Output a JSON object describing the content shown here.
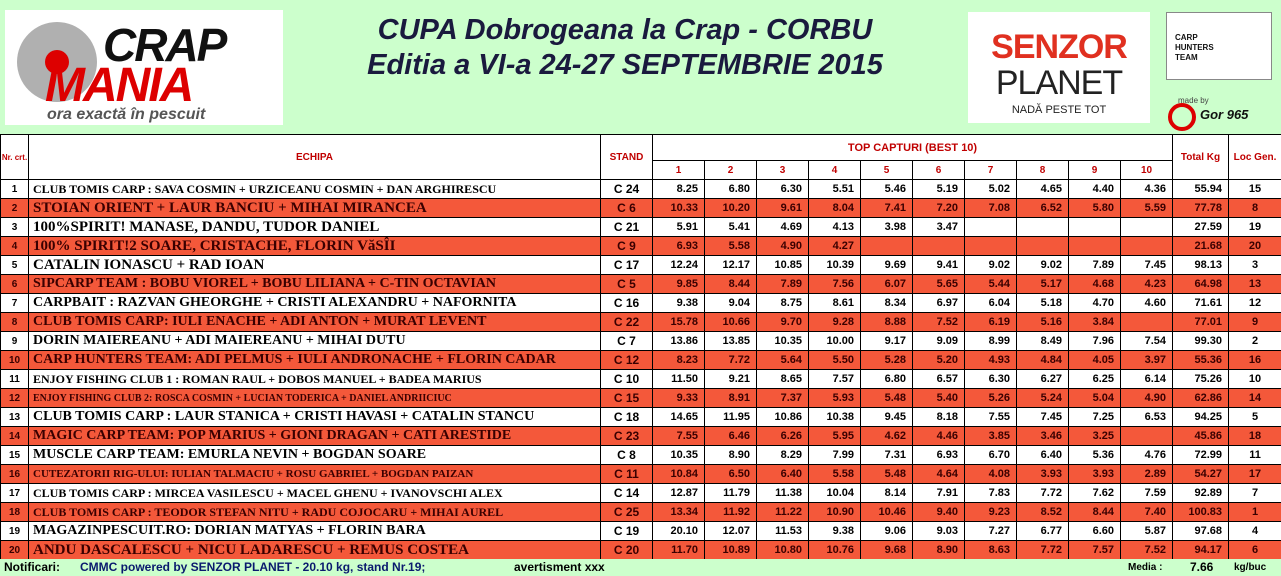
{
  "header": {
    "title_line1": "CUPA Dobrogeana la Crap - CORBU",
    "title_line2": "Editia a VI-a 24-27 SEPTEMBRIE 2015",
    "logo_left": {
      "word1": "CRAP",
      "word2": "MANIA",
      "tagline": "ora exactă în pescuit"
    },
    "logo_senzor": {
      "word1": "SENZOR",
      "word2": "PLANET",
      "tagline": "NADĂ PESTE TOT"
    },
    "logo_carp_hunters": "CARP HUNTERS TEAM",
    "made_by": "made by",
    "author": "Gor 965"
  },
  "table": {
    "columns": {
      "nr": "Nr. crt.",
      "team": "ECHIPA",
      "stand": "STAND",
      "top": "TOP CAPTURI (BEST 10)",
      "catch_numbers": [
        "1",
        "2",
        "3",
        "4",
        "5",
        "6",
        "7",
        "8",
        "9",
        "10"
      ],
      "total": "Total Kg",
      "rank": "Loc Gen."
    },
    "rows": [
      {
        "nr": "1",
        "team": "CLUB TOMIS CARP : SAVA COSMIN + URZICEANU COSMIN + DAN ARGHIRESCU",
        "stand": "C 24",
        "captures": [
          "8.25",
          "6.80",
          "6.30",
          "5.51",
          "5.46",
          "5.19",
          "5.02",
          "4.65",
          "4.40",
          "4.36"
        ],
        "total": "55.94",
        "rank": "15"
      },
      {
        "nr": "2",
        "team": "STOIAN ORIENT + LAUR BANCIU + MIHAI MIRANCEA",
        "stand": "C 6",
        "captures": [
          "10.33",
          "10.20",
          "9.61",
          "8.04",
          "7.41",
          "7.20",
          "7.08",
          "6.52",
          "5.80",
          "5.59"
        ],
        "total": "77.78",
        "rank": "8"
      },
      {
        "nr": "3",
        "team": "100%SPIRIT! MANASE, DANDU, TUDOR DANIEL",
        "stand": "C 21",
        "captures": [
          "5.91",
          "5.41",
          "4.69",
          "4.13",
          "3.98",
          "3.47"
        ],
        "total": "27.59",
        "rank": "19"
      },
      {
        "nr": "4",
        "team": "100% SPIRIT!2 SOARE, CRISTACHE, FLORIN VăSÎI",
        "stand": "C 9",
        "captures": [
          "6.93",
          "5.58",
          "4.90",
          "4.27"
        ],
        "total": "21.68",
        "rank": "20"
      },
      {
        "nr": "5",
        "team": "CATALIN IONASCU + RAD IOAN",
        "stand": "C 17",
        "captures": [
          "12.24",
          "12.17",
          "10.85",
          "10.39",
          "9.69",
          "9.41",
          "9.02",
          "9.02",
          "7.89",
          "7.45"
        ],
        "total": "98.13",
        "rank": "3"
      },
      {
        "nr": "6",
        "team": "SIPCARP TEAM : BOBU VIOREL + BOBU LILIANA + C-TIN OCTAVIAN",
        "stand": "C 5",
        "captures": [
          "9.85",
          "8.44",
          "7.89",
          "7.56",
          "6.07",
          "5.65",
          "5.44",
          "5.17",
          "4.68",
          "4.23"
        ],
        "total": "64.98",
        "rank": "13"
      },
      {
        "nr": "7",
        "team": "CARPBAIT : RAZVAN GHEORGHE + CRISTI ALEXANDRU + NAFORNITA",
        "stand": "C 16",
        "captures": [
          "9.38",
          "9.04",
          "8.75",
          "8.61",
          "8.34",
          "6.97",
          "6.04",
          "5.18",
          "4.70",
          "4.60"
        ],
        "total": "71.61",
        "rank": "12"
      },
      {
        "nr": "8",
        "team": "CLUB TOMIS CARP: IULI ENACHE + ADI ANTON + MURAT LEVENT",
        "stand": "C 22",
        "captures": [
          "15.78",
          "10.66",
          "9.70",
          "9.28",
          "8.88",
          "7.52",
          "6.19",
          "5.16",
          "3.84"
        ],
        "total": "77.01",
        "rank": "9"
      },
      {
        "nr": "9",
        "team": "DORIN MAIEREANU + ADI MAIEREANU + MIHAI DUTU",
        "stand": "C 7",
        "captures": [
          "13.86",
          "13.85",
          "10.35",
          "10.00",
          "9.17",
          "9.09",
          "8.99",
          "8.49",
          "7.96",
          "7.54"
        ],
        "total": "99.30",
        "rank": "2"
      },
      {
        "nr": "10",
        "team": "CARP HUNTERS TEAM: ADI PELMUS + IULI ANDRONACHE + FLORIN CADAR",
        "stand": "C 12",
        "captures": [
          "8.23",
          "7.72",
          "5.64",
          "5.50",
          "5.28",
          "5.20",
          "4.93",
          "4.84",
          "4.05",
          "3.97"
        ],
        "total": "55.36",
        "rank": "16"
      },
      {
        "nr": "11",
        "team": "ENJOY FISHING CLUB 1 : ROMAN RAUL + DOBOS MANUEL + BADEA MARIUS",
        "stand": "C 10",
        "captures": [
          "11.50",
          "9.21",
          "8.65",
          "7.57",
          "6.80",
          "6.57",
          "6.30",
          "6.27",
          "6.25",
          "6.14"
        ],
        "total": "75.26",
        "rank": "10"
      },
      {
        "nr": "12",
        "team": "ENJOY FISHING CLUB 2: ROSCA COSMIN + LUCIAN TODERICA + DANIEL ANDRIICIUC",
        "stand": "C 15",
        "captures": [
          "9.33",
          "8.91",
          "7.37",
          "5.93",
          "5.48",
          "5.40",
          "5.26",
          "5.24",
          "5.04",
          "4.90"
        ],
        "total": "62.86",
        "rank": "14"
      },
      {
        "nr": "13",
        "team": "CLUB TOMIS CARP : LAUR STANICA + CRISTI HAVASI + CATALIN STANCU",
        "stand": "C 18",
        "captures": [
          "14.65",
          "11.95",
          "10.86",
          "10.38",
          "9.45",
          "8.18",
          "7.55",
          "7.45",
          "7.25",
          "6.53"
        ],
        "total": "94.25",
        "rank": "5"
      },
      {
        "nr": "14",
        "team": "MAGIC CARP TEAM: POP MARIUS + GIONI DRAGAN + CATI ARESTIDE",
        "stand": "C 23",
        "captures": [
          "7.55",
          "6.46",
          "6.26",
          "5.95",
          "4.62",
          "4.46",
          "3.85",
          "3.46",
          "3.25"
        ],
        "total": "45.86",
        "rank": "18"
      },
      {
        "nr": "15",
        "team": "MUSCLE CARP TEAM: EMURLA NEVIN + BOGDAN SOARE",
        "stand": "C 8",
        "captures": [
          "10.35",
          "8.90",
          "8.29",
          "7.99",
          "7.31",
          "6.93",
          "6.70",
          "6.40",
          "5.36",
          "4.76"
        ],
        "total": "72.99",
        "rank": "11"
      },
      {
        "nr": "16",
        "team": "CUTEZATORII RIG-ULUI: IULIAN TALMACIU + ROSU GABRIEL + BOGDAN PAIZAN",
        "stand": "C 11",
        "captures": [
          "10.84",
          "6.50",
          "6.40",
          "5.58",
          "5.48",
          "4.64",
          "4.08",
          "3.93",
          "3.93",
          "2.89"
        ],
        "total": "54.27",
        "rank": "17"
      },
      {
        "nr": "17",
        "team": "CLUB TOMIS CARP : MIRCEA VASILESCU + MACEL GHENU + IVANOVSCHI ALEX",
        "stand": "C 14",
        "captures": [
          "12.87",
          "11.79",
          "11.38",
          "10.04",
          "8.14",
          "7.91",
          "7.83",
          "7.72",
          "7.62",
          "7.59"
        ],
        "total": "92.89",
        "rank": "7"
      },
      {
        "nr": "18",
        "team": "CLUB TOMIS CARP : TEODOR STEFAN NITU + RADU COJOCARU + MIHAI AUREL",
        "stand": "C 25",
        "captures": [
          "13.34",
          "11.92",
          "11.22",
          "10.90",
          "10.46",
          "9.40",
          "9.23",
          "8.52",
          "8.44",
          "7.40"
        ],
        "total": "100.83",
        "rank": "1"
      },
      {
        "nr": "19",
        "team": "MAGAZINPESCUIT.RO: DORIAN MATYAS + FLORIN BARA",
        "stand": "C 19",
        "captures": [
          "20.10",
          "12.07",
          "11.53",
          "9.38",
          "9.06",
          "9.03",
          "7.27",
          "6.77",
          "6.60",
          "5.87"
        ],
        "total": "97.68",
        "rank": "4"
      },
      {
        "nr": "20",
        "team": "ANDU DASCALESCU + NICU LADARESCU + REMUS COSTEA",
        "stand": "C 20",
        "captures": [
          "11.70",
          "10.89",
          "10.80",
          "10.76",
          "9.68",
          "8.90",
          "8.63",
          "7.72",
          "7.57",
          "7.52"
        ],
        "total": "94.17",
        "rank": "6"
      }
    ]
  },
  "footer": {
    "label": "Notificari:",
    "notice": "CMMC powered by SENZOR PLANET - 20.10 kg, stand Nr.19;",
    "warning": "avertisment xxx",
    "average_label": "Media :",
    "average": "7.66",
    "unit": "kg/buc"
  }
}
